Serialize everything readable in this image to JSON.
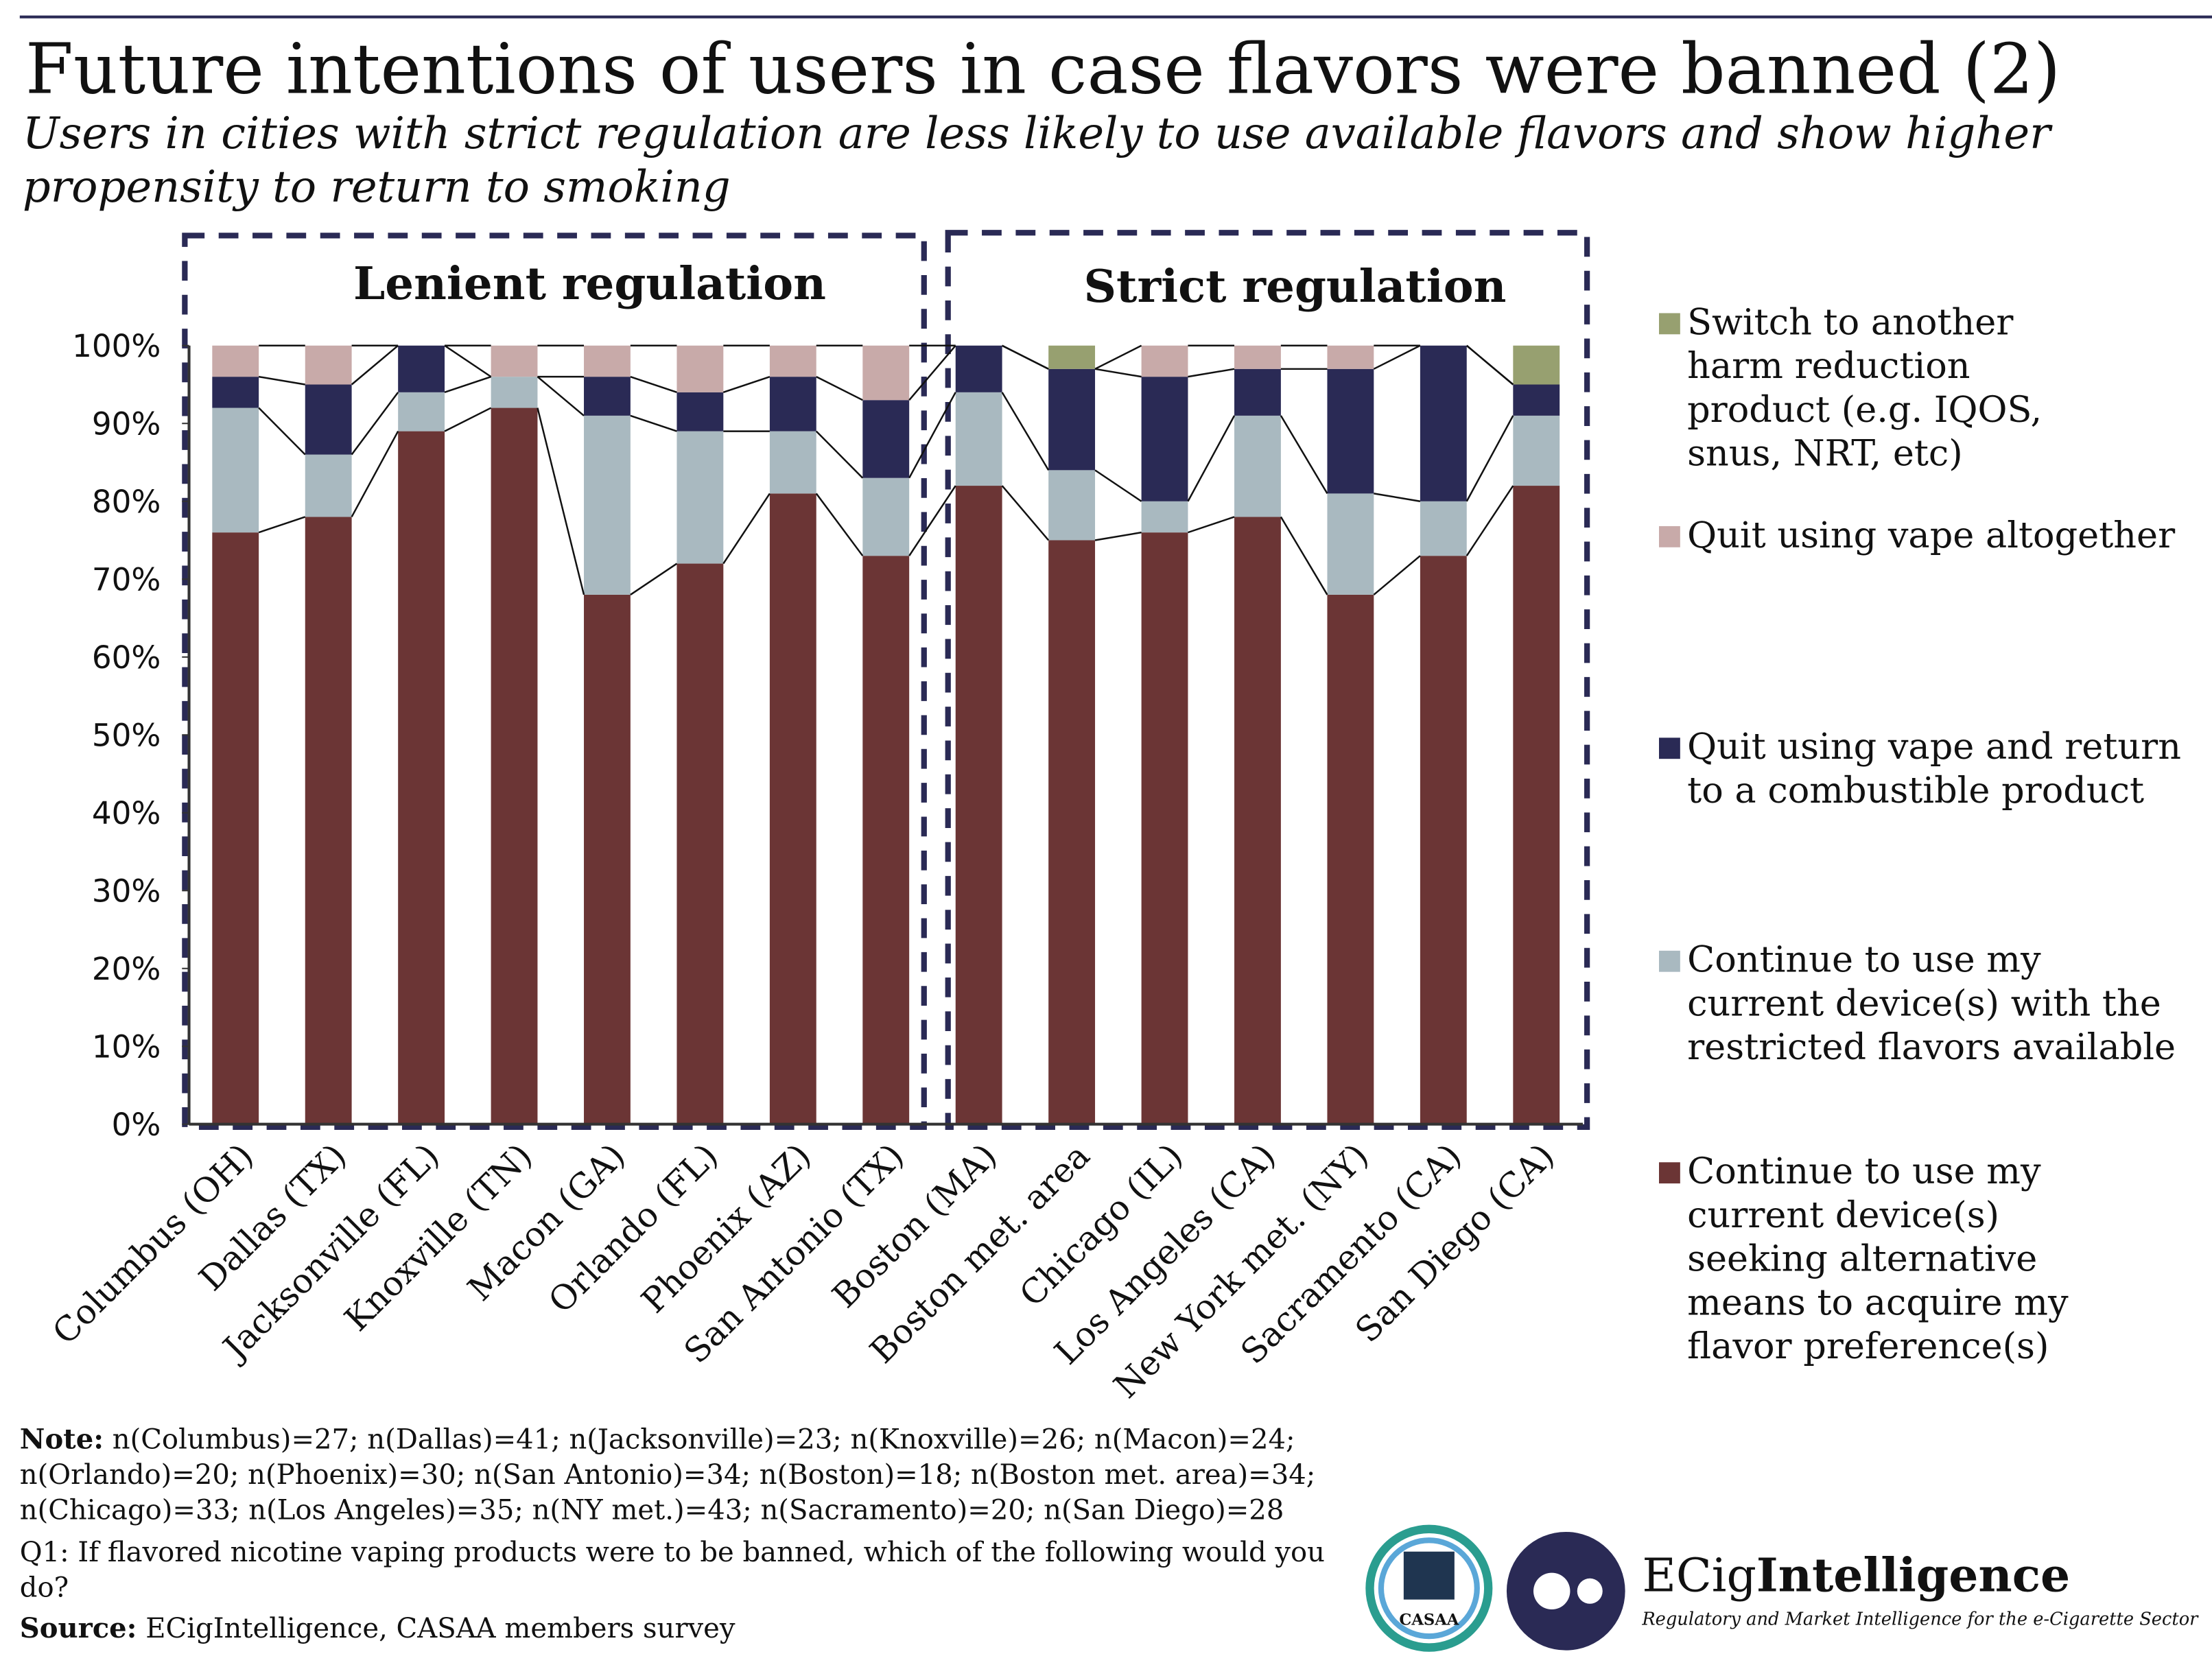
{
  "chart_data": {
    "type": "stacked_bar",
    "title": "Future intentions of users in case flavors were banned (2)",
    "subtitle": "Users in cities with strict regulation are less likely to use available flavors and show higher propensity to return to smoking",
    "groups": [
      {
        "label": "Lenient regulation"
      },
      {
        "label": "Strict regulation"
      }
    ],
    "categories": [
      "Columbus (OH)",
      "Dallas (TX)",
      "Jacksonville (FL)",
      "Knoxville (TN)",
      "Macon (GA)",
      "Orlando (FL)",
      "Phoenix (AZ)",
      "San Antonio (TX)",
      "Boston (MA)",
      "Boston met. area",
      "Chicago (IL)",
      "Los Angeles (CA)",
      "New York met. (NY)",
      "Sacramento (CA)",
      "San Diego (CA)"
    ],
    "series": [
      {
        "name": "Continue to use my current device(s) seeking alternative means to acquire my flavor preference(s)",
        "color": "#6b3535",
        "values": [
          76,
          78,
          89,
          92,
          68,
          72,
          81,
          73,
          82,
          75,
          76,
          78,
          68,
          73,
          82
        ]
      },
      {
        "name": "Continue to use my current device(s) with the restricted flavors available",
        "color": "#a9b9c0",
        "values": [
          16,
          8,
          5,
          4,
          23,
          17,
          8,
          10,
          12,
          9,
          4,
          13,
          13,
          7,
          9
        ]
      },
      {
        "name": "Quit using vape and return to a combustible product",
        "color": "#2a2a55",
        "values": [
          4,
          9,
          6,
          0,
          5,
          5,
          7,
          10,
          6,
          13,
          16,
          6,
          16,
          20,
          4
        ]
      },
      {
        "name": "Quit using vape altogether",
        "color": "#c8aaa9",
        "values": [
          4,
          5,
          0,
          4,
          4,
          6,
          4,
          7,
          0,
          0,
          4,
          3,
          3,
          0,
          0
        ]
      },
      {
        "name": "Switch to another harm reduction product (e.g. IQOS, snus, NRT, etc)",
        "color": "#97a070",
        "values": [
          0,
          0,
          0,
          0,
          0,
          0,
          0,
          0,
          0,
          3,
          0,
          0,
          0,
          0,
          5
        ]
      }
    ],
    "ylim": [
      0,
      100
    ],
    "yticks": [
      {
        "value": 0,
        "label": "0%"
      },
      {
        "value": 10,
        "label": "10%"
      },
      {
        "value": 20,
        "label": "20%"
      },
      {
        "value": 30,
        "label": "30%"
      },
      {
        "value": 40,
        "label": "40%"
      },
      {
        "value": 50,
        "label": "50%"
      },
      {
        "value": 60,
        "label": "60%"
      },
      {
        "value": 70,
        "label": "70%"
      },
      {
        "value": 80,
        "label": "80%"
      },
      {
        "value": 90,
        "label": "90%"
      },
      {
        "value": 100,
        "label": "100%"
      }
    ],
    "grid": false,
    "legend": "right"
  },
  "footer": {
    "note_label": "Note:",
    "note": "n(Columbus)=27; n(Dallas)=41; n(Jacksonville)=23; n(Knoxville)=26; n(Macon)=24; n(Orlando)=20; n(Phoenix)=30; n(San Antonio)=34; n(Boston)=18; n(Boston met. area)=34; n(Chicago)=33; n(Los Angeles)=35; n(NY met.)=43; n(Sacramento)=20; n(San Diego)=28",
    "question": "Q1: If flavored nicotine vaping products were to be banned, which of the following would you do?",
    "source_label": "Source:",
    "source": "ECigIntelligence, CASAA members survey"
  },
  "logos": {
    "casaa": "CASAA",
    "brand_prefix": "ECig",
    "brand_suffix": "Intelligence",
    "tagline": "Regulatory and Market Intelligence for the e-Cigarette Sector"
  }
}
